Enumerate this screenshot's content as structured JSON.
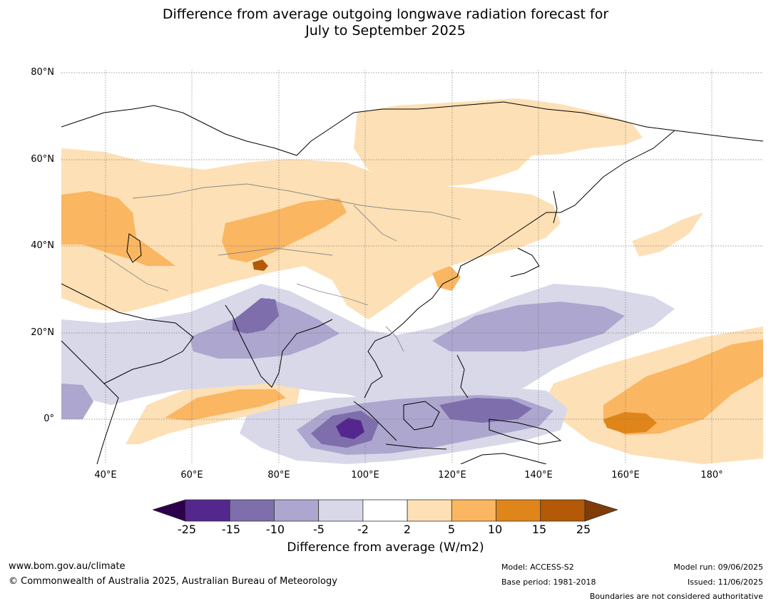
{
  "title_line1": "Difference from average outgoing longwave radiation forecast for",
  "title_line2": "July to September 2025",
  "map": {
    "lat_labels": [
      "80°N",
      "60°N",
      "40°N",
      "20°N",
      "0°"
    ],
    "lon_labels": [
      "40°E",
      "60°E",
      "80°E",
      "100°E",
      "120°E",
      "140°E",
      "160°E",
      "180°"
    ]
  },
  "colorbar": {
    "ticks": [
      "-25",
      "-15",
      "-10",
      "-5",
      "-2",
      "2",
      "5",
      "10",
      "15",
      "25"
    ],
    "colors": [
      "#54278f",
      "#7e6eac",
      "#ada6cf",
      "#d8d8e9",
      "#ffffff",
      "#fde0b5",
      "#fbb662",
      "#e0851a",
      "#b35908"
    ],
    "under_color": "#2d004b",
    "over_color": "#7f3b08",
    "label": "Difference from average (W/m2)"
  },
  "footer": {
    "url": "www.bom.gov.au/climate",
    "copyright": "© Commonwealth of Australia 2025, Australian Bureau of Meteorology",
    "model": "Model: ACCESS-S2",
    "base_period": "Base period: 1981-2018",
    "model_run": "Model run: 09/06/2025",
    "issued": "Issued: 11/06/2025",
    "disclaimer": "Boundaries are not considered authoritative"
  }
}
